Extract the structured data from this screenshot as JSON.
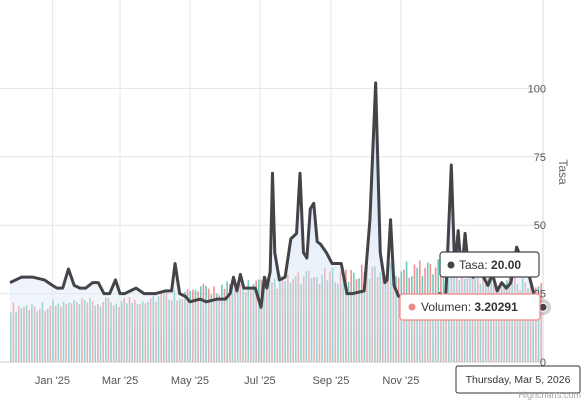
{
  "chart_data": {
    "type": "line",
    "xlabel": "",
    "ylabel": "Tasa",
    "ylim": [
      0,
      125
    ],
    "y_ticks": [
      0,
      25,
      50,
      75,
      100
    ],
    "x_ticks": [
      "Jan '25",
      "Mar '25",
      "May '25",
      "Jul '25",
      "Sep '25",
      "Nov '25"
    ],
    "x_tick_dates": [
      "2025-01-01",
      "2025-03-01",
      "2025-05-01",
      "2025-07-01",
      "2025-09-01",
      "2025-11-01"
    ],
    "x_range": [
      "2024-11-25",
      "2026-03-05"
    ],
    "grid": true,
    "legend": "none",
    "series": [
      {
        "name": "Tasa",
        "color": "#434348",
        "area_color": "#c9dcf0",
        "points": [
          [
            "2024-11-25",
            29
          ],
          [
            "2024-12-05",
            31
          ],
          [
            "2024-12-15",
            31
          ],
          [
            "2024-12-25",
            30
          ],
          [
            "2025-01-01",
            28
          ],
          [
            "2025-01-05",
            27
          ],
          [
            "2025-01-10",
            27
          ],
          [
            "2025-01-15",
            34
          ],
          [
            "2025-01-20",
            28
          ],
          [
            "2025-01-25",
            27
          ],
          [
            "2025-01-30",
            27
          ],
          [
            "2025-02-05",
            29
          ],
          [
            "2025-02-10",
            29
          ],
          [
            "2025-02-15",
            25
          ],
          [
            "2025-02-20",
            25
          ],
          [
            "2025-02-25",
            30
          ],
          [
            "2025-03-01",
            25
          ],
          [
            "2025-03-05",
            25
          ],
          [
            "2025-03-15",
            27
          ],
          [
            "2025-03-22",
            25
          ],
          [
            "2025-04-01",
            25
          ],
          [
            "2025-04-10",
            26
          ],
          [
            "2025-04-15",
            26
          ],
          [
            "2025-04-18",
            36
          ],
          [
            "2025-04-22",
            25
          ],
          [
            "2025-04-27",
            24
          ],
          [
            "2025-05-01",
            22
          ],
          [
            "2025-05-10",
            23
          ],
          [
            "2025-05-15",
            22
          ],
          [
            "2025-05-25",
            23
          ],
          [
            "2025-06-01",
            23
          ],
          [
            "2025-06-05",
            25
          ],
          [
            "2025-06-08",
            31
          ],
          [
            "2025-06-11",
            26
          ],
          [
            "2025-06-14",
            32
          ],
          [
            "2025-06-17",
            27
          ],
          [
            "2025-06-22",
            27
          ],
          [
            "2025-06-27",
            27
          ],
          [
            "2025-07-02",
            20
          ],
          [
            "2025-07-05",
            31
          ],
          [
            "2025-07-07",
            27
          ],
          [
            "2025-07-10",
            33
          ],
          [
            "2025-07-12",
            69
          ],
          [
            "2025-07-14",
            40
          ],
          [
            "2025-07-18",
            30
          ],
          [
            "2025-07-23",
            31
          ],
          [
            "2025-07-28",
            45
          ],
          [
            "2025-08-02",
            47
          ],
          [
            "2025-08-05",
            69
          ],
          [
            "2025-08-08",
            40
          ],
          [
            "2025-08-11",
            38
          ],
          [
            "2025-08-14",
            56
          ],
          [
            "2025-08-17",
            58
          ],
          [
            "2025-08-20",
            44
          ],
          [
            "2025-08-23",
            43
          ],
          [
            "2025-08-28",
            40
          ],
          [
            "2025-09-02",
            36
          ],
          [
            "2025-09-05",
            36
          ],
          [
            "2025-09-10",
            36
          ],
          [
            "2025-09-15",
            25
          ],
          [
            "2025-09-20",
            25
          ],
          [
            "2025-09-30",
            26
          ],
          [
            "2025-10-05",
            52
          ],
          [
            "2025-10-10",
            102
          ],
          [
            "2025-10-14",
            40
          ],
          [
            "2025-10-18",
            29
          ],
          [
            "2025-10-20",
            30
          ],
          [
            "2025-10-23",
            52
          ],
          [
            "2025-10-26",
            28
          ],
          [
            "2025-10-30",
            24
          ],
          [
            "2025-11-05",
            24
          ],
          [
            "2025-11-10",
            23
          ],
          [
            "2025-11-15",
            23
          ],
          [
            "2025-11-20",
            21
          ],
          [
            "2025-11-25",
            21
          ],
          [
            "2025-11-30",
            20
          ],
          [
            "2025-12-05",
            25
          ],
          [
            "2025-12-10",
            22
          ],
          [
            "2025-12-15",
            72
          ],
          [
            "2025-12-18",
            34
          ],
          [
            "2025-12-21",
            48
          ],
          [
            "2025-12-24",
            32
          ],
          [
            "2025-12-27",
            47
          ],
          [
            "2025-12-30",
            34
          ],
          [
            "2026-01-03",
            31
          ],
          [
            "2026-01-08",
            37
          ],
          [
            "2026-01-12",
            31
          ],
          [
            "2026-01-16",
            28
          ],
          [
            "2026-01-20",
            32
          ],
          [
            "2026-01-24",
            26
          ],
          [
            "2026-01-28",
            29
          ],
          [
            "2026-02-01",
            27
          ],
          [
            "2026-02-05",
            29
          ],
          [
            "2026-02-10",
            42
          ],
          [
            "2026-02-15",
            37
          ],
          [
            "2026-02-20",
            33
          ],
          [
            "2026-02-25",
            25
          ],
          [
            "2026-03-01",
            21
          ],
          [
            "2026-03-05",
            20
          ]
        ]
      },
      {
        "name": "Volumen",
        "type": "column",
        "colors": [
          "#5fc7bd",
          "#f0898a"
        ],
        "start": "2024-11-25",
        "end": "2026-03-05",
        "count": 202,
        "note_scale": "secondary axis, no ticks printed",
        "trend": [
          [
            0,
            0.46
          ],
          [
            0.2,
            0.5
          ],
          [
            0.4,
            0.62
          ],
          [
            0.6,
            0.72
          ],
          [
            0.8,
            0.8
          ],
          [
            1.0,
            0.62
          ]
        ]
      }
    ],
    "tooltip": {
      "date": "Thursday, Mar 5, 2026",
      "rows": [
        {
          "name": "Tasa",
          "value": "20.00",
          "color": "#434348"
        },
        {
          "name": "Volumen",
          "value": "3.20291",
          "color": "#f0898a"
        }
      ]
    },
    "credits": "Highcharts.com"
  }
}
